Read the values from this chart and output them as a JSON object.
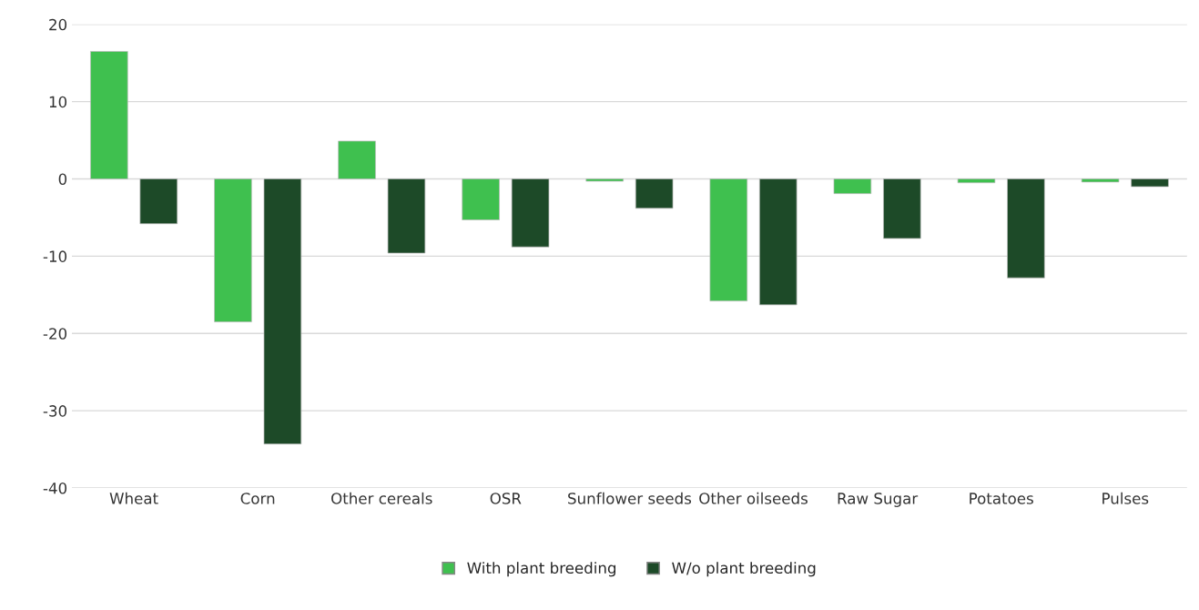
{
  "chart_data": {
    "type": "bar",
    "categories": [
      "Wheat",
      "Corn",
      "Other cereals",
      "OSR",
      "Sunflower seeds",
      "Other oilseeds",
      "Raw Sugar",
      "Potatoes",
      "Pulses"
    ],
    "series": [
      {
        "name": "With plant breeding",
        "color": "#3fc04f",
        "values": [
          16.5,
          -18.5,
          4.9,
          -5.3,
          -0.3,
          -15.8,
          -1.9,
          -0.5,
          -0.4
        ]
      },
      {
        "name": "W/o plant breeding",
        "color": "#1d4a28",
        "values": [
          -5.8,
          -34.3,
          -9.6,
          -8.8,
          -3.8,
          -16.3,
          -7.7,
          -12.8,
          -1.0
        ]
      }
    ],
    "ylim": [
      -40,
      20
    ],
    "yticks": [
      -40,
      -30,
      -20,
      -10,
      0,
      10,
      20
    ],
    "grid": "y",
    "legend": "bottom"
  }
}
